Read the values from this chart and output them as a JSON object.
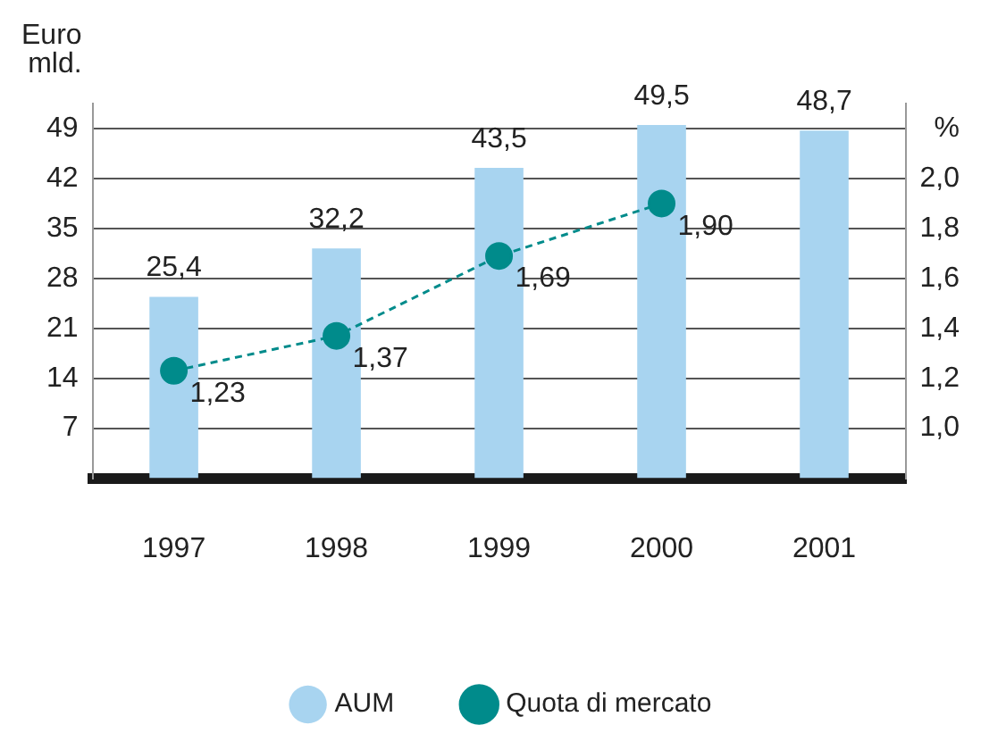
{
  "chart_data": {
    "type": "bar",
    "categories": [
      "1997",
      "1998",
      "1999",
      "2000",
      "2001"
    ],
    "series": [
      {
        "name": "AUM",
        "color": "#a8d4f0",
        "values": [
          25.4,
          32.2,
          43.5,
          49.5,
          48.7
        ],
        "value_labels": [
          "25,4",
          "32,2",
          "43,5",
          "49,5",
          "48,7"
        ]
      },
      {
        "name": "Quota di mercato",
        "type": "line",
        "axis": "y2",
        "color": "#008b8b",
        "line_style": "dashed",
        "marker": "circle",
        "values": [
          1.23,
          1.37,
          1.69,
          1.9,
          null
        ],
        "value_labels": [
          "1,23",
          "1,37",
          "1,69",
          "1,90",
          null
        ]
      }
    ],
    "ylabel": "Euro mld.",
    "y2label": "%",
    "ylim": [
      0,
      52.5
    ],
    "yticks": [
      7,
      14,
      21,
      28,
      35,
      42,
      49
    ],
    "y2lim": [
      0.8,
      2.3
    ],
    "y2ticks": [
      {
        "value": 1.0,
        "label": "1,0"
      },
      {
        "value": 1.2,
        "label": "1,2"
      },
      {
        "value": 1.4,
        "label": "1,4"
      },
      {
        "value": 1.6,
        "label": "1,6"
      },
      {
        "value": 1.8,
        "label": "1,8"
      },
      {
        "value": 2.0,
        "label": "2,0"
      }
    ],
    "grid": "y",
    "legend": "bottom"
  }
}
